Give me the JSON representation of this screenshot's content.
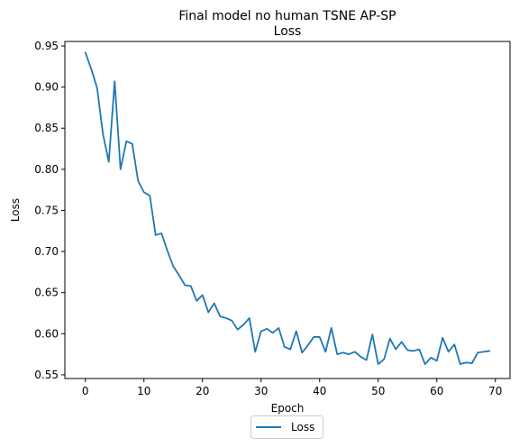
{
  "chart_data": {
    "type": "line",
    "title_line1": "Final model no human TSNE AP-SP",
    "title_line2": "Loss",
    "xlabel": "Epoch",
    "ylabel": "Loss",
    "xlim": [
      -3.5,
      72.5
    ],
    "ylim": [
      0.5455,
      0.9555
    ],
    "xticks": [
      0,
      10,
      20,
      30,
      40,
      50,
      60,
      70
    ],
    "yticks": [
      0.55,
      0.6,
      0.65,
      0.7,
      0.75,
      0.8,
      0.85,
      0.9,
      0.95
    ],
    "ytick_labels": [
      "0.55",
      "0.60",
      "0.65",
      "0.70",
      "0.75",
      "0.80",
      "0.85",
      "0.90",
      "0.95"
    ],
    "grid": false,
    "legend_position": "bottom-center",
    "series": [
      {
        "name": "Loss",
        "color": "#1f77b4",
        "x": [
          0,
          1,
          2,
          3,
          4,
          5,
          6,
          7,
          8,
          9,
          10,
          11,
          12,
          13,
          14,
          15,
          16,
          17,
          18,
          19,
          20,
          21,
          22,
          23,
          24,
          25,
          26,
          27,
          28,
          29,
          30,
          31,
          32,
          33,
          34,
          35,
          36,
          37,
          38,
          39,
          40,
          41,
          42,
          43,
          44,
          45,
          46,
          47,
          48,
          49,
          50,
          51,
          52,
          53,
          54,
          55,
          56,
          57,
          58,
          59,
          60,
          61,
          62,
          63,
          64,
          65,
          66,
          67,
          68,
          69
        ],
        "values": [
          0.942,
          0.922,
          0.899,
          0.843,
          0.809,
          0.907,
          0.8,
          0.834,
          0.831,
          0.786,
          0.772,
          0.768,
          0.72,
          0.722,
          0.701,
          0.682,
          0.671,
          0.659,
          0.658,
          0.64,
          0.647,
          0.626,
          0.637,
          0.621,
          0.619,
          0.616,
          0.605,
          0.611,
          0.619,
          0.578,
          0.603,
          0.606,
          0.601,
          0.607,
          0.584,
          0.581,
          0.603,
          0.577,
          0.586,
          0.596,
          0.596,
          0.578,
          0.607,
          0.575,
          0.577,
          0.575,
          0.578,
          0.572,
          0.568,
          0.599,
          0.563,
          0.569,
          0.594,
          0.581,
          0.59,
          0.58,
          0.579,
          0.581,
          0.563,
          0.571,
          0.567,
          0.595,
          0.578,
          0.587,
          0.563,
          0.565,
          0.564,
          0.577,
          0.578,
          0.579
        ]
      }
    ]
  }
}
